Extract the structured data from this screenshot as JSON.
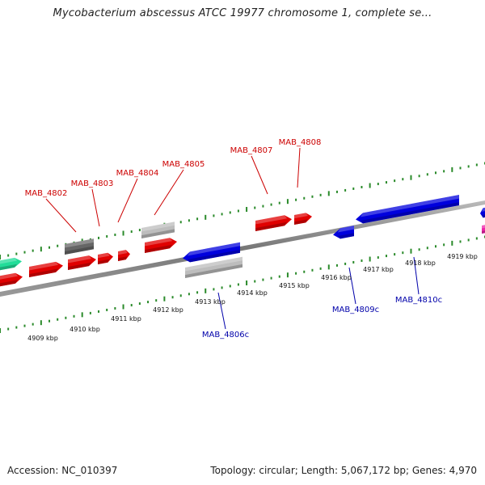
{
  "header": {
    "title": "Mycobacterium abscessus ATCC 19977 chromosome 1, complete se..."
  },
  "footer": {
    "accession": "Accession: NC_010397",
    "summary": "Topology: circular; Length: 5,067,172 bp; Genes: 4,970"
  },
  "colors": {
    "forward": "#e00000",
    "reverse": "#0000dd",
    "grey": "#bdbdbd",
    "dark": "#666666",
    "green": "#22dd99",
    "magenta": "#ee22aa",
    "tick": "#2a8a2a",
    "label_forward": "#cc0000",
    "label_reverse": "#0000aa"
  },
  "forward_labels": [
    "MAB_4802",
    "MAB_4803",
    "MAB_4804",
    "MAB_4805",
    "MAB_4807",
    "MAB_4808"
  ],
  "reverse_labels": [
    "MAB_4806c",
    "MAB_4809c",
    "MAB_4810c"
  ],
  "scale_labels": [
    "4909 kbp",
    "4910 kbp",
    "4911 kbp",
    "4912 kbp",
    "4913 kbp",
    "4914 kbp",
    "4915 kbp",
    "4916 kbp",
    "4917 kbp",
    "4918 kbp",
    "4919 kbp"
  ]
}
